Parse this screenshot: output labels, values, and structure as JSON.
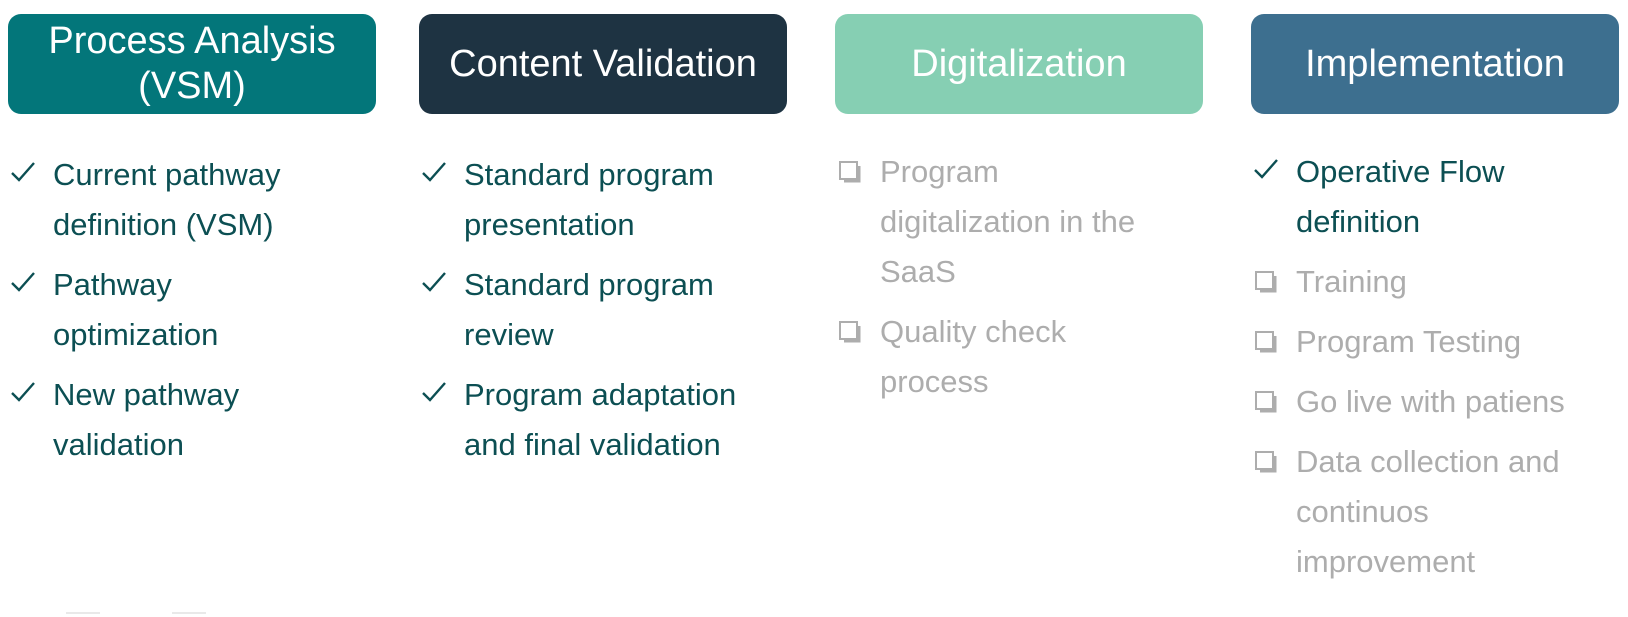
{
  "columns": [
    {
      "title": "Process Analysis (VSM)",
      "color": "#03767a",
      "items": [
        {
          "text": "Current pathway definition (VSM)",
          "status": "done"
        },
        {
          "text": "Pathway optimization",
          "status": "done"
        },
        {
          "text": "New pathway validation",
          "status": "done"
        }
      ]
    },
    {
      "title": "Content Validation",
      "color": "#1e3342",
      "items": [
        {
          "text": "Standard program presentation",
          "status": "done"
        },
        {
          "text": "Standard program review",
          "status": "done"
        },
        {
          "text": "Program adaptation and final validation",
          "status": "done"
        }
      ]
    },
    {
      "title": "Digitalization",
      "color": "#86cfb3",
      "items": [
        {
          "text": "Program digitalization in the SaaS",
          "status": "todo"
        },
        {
          "text": "Quality check process",
          "status": "todo"
        }
      ]
    },
    {
      "title": "Implementation",
      "color": "#3d6f8f",
      "items": [
        {
          "text": "Operative Flow definition",
          "status": "done"
        },
        {
          "text": "Training",
          "status": "todo"
        },
        {
          "text": "Program Testing",
          "status": "todo"
        },
        {
          "text": "Go live with patiens",
          "status": "todo"
        },
        {
          "text": "Data collection and continuos improvement",
          "status": "todo"
        }
      ]
    }
  ],
  "icons": {
    "done": "check-icon",
    "todo": "checkbox-icon"
  },
  "colors": {
    "done_text": "#0c4f53",
    "todo_text": "#adadad"
  }
}
